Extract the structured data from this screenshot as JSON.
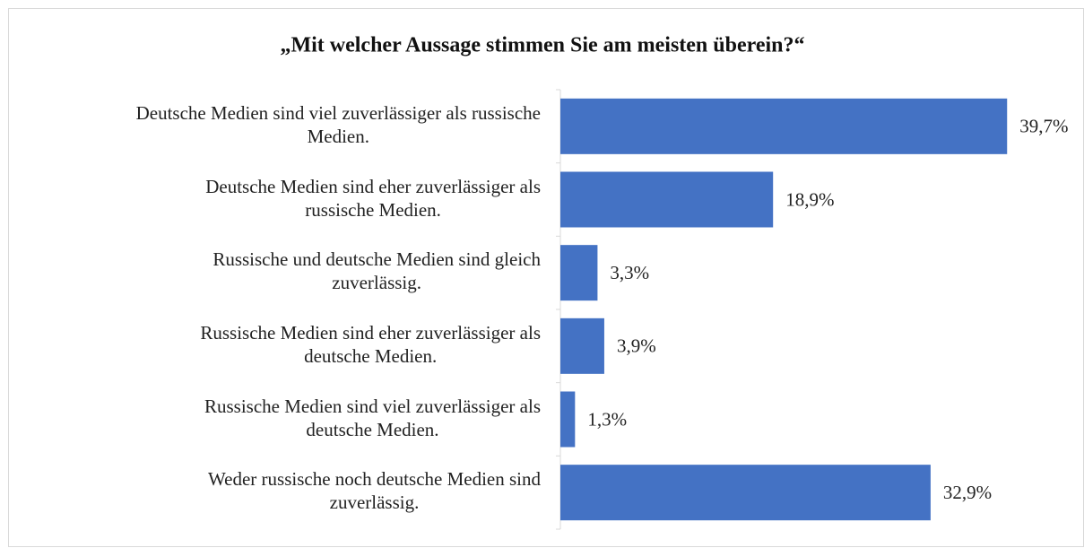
{
  "chart_data": {
    "type": "barh",
    "title": "„Mit welcher Aussage stimmen Sie am meisten überein?“",
    "categories": [
      "Deutsche Medien sind viel zuverlässiger als russische\nMedien.",
      "Deutsche Medien sind eher zuverlässiger als\nrussische Medien.",
      "Russische und deutsche Medien sind gleich\nzuverlässig.",
      "Russische Medien sind eher zuverlässiger als\ndeutsche Medien.",
      "Russische Medien sind viel zuverlässiger als\ndeutsche Medien.",
      "Weder russische noch deutsche Medien sind\nzuverlässig."
    ],
    "values": [
      39.7,
      18.9,
      3.3,
      3.9,
      1.3,
      32.9
    ],
    "value_labels": [
      "39,7%",
      "18,9%",
      "3,3%",
      "3,9%",
      "1,3%",
      "32,9%"
    ],
    "color": "#4472c4",
    "xlim": [
      0,
      40
    ]
  }
}
